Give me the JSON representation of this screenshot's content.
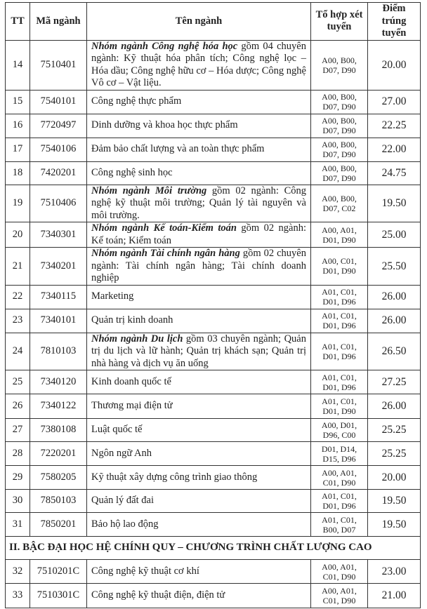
{
  "headers": [
    "TT",
    "Mã ngành",
    "Tên ngành",
    "Tổ hợp xét tuyển",
    "Điểm trúng tuyển"
  ],
  "rows_a": [
    {
      "tt": "14",
      "code": "7510401",
      "bold": "Nhóm ngành Công nghệ hóa học",
      "name": " gồm 04 chuyên ngành: Kỹ thuật hóa phân tích; Công nghệ lọc – Hóa dầu; Công nghệ hữu cơ – Hóa dược; Công nghệ Vô cơ – Vật liệu.",
      "combo": "A00, B00, D07, D90",
      "score": "20.00",
      "h": 71
    },
    {
      "tt": "15",
      "code": "7540101",
      "bold": "",
      "name": "Công nghệ thực phẩm",
      "combo": "A00, B00, D07, D90",
      "score": "27.00",
      "h": 34
    },
    {
      "tt": "16",
      "code": "7720497",
      "bold": "",
      "name": "Dinh dưỡng và khoa học thực phẩm",
      "combo": "A00, B00, D07, D90",
      "score": "22.25",
      "h": 34
    },
    {
      "tt": "17",
      "code": "7540106",
      "bold": "",
      "name": "Đảm bảo chất lượng và an toàn thực phẩm",
      "combo": "A00, B00, D07, D90",
      "score": "22.00",
      "h": 34
    },
    {
      "tt": "18",
      "code": "7420201",
      "bold": "",
      "name": "Công nghệ sinh học",
      "combo": "A00, B00, D07, D90",
      "score": "24.75",
      "h": 33
    },
    {
      "tt": "19",
      "code": "7510406",
      "bold": "Nhóm ngành Môi trường",
      "name": " gồm 02 ngành: Công nghệ kỹ thuật môi trường; Quản lý tài nguyên và môi trường.",
      "combo": "A00, B00, D07, C02",
      "score": "19.50",
      "h": 53
    },
    {
      "tt": "20",
      "code": "7340301",
      "bold": "Nhóm ngành Kế toán-Kiểm toán",
      "name": " gồm 02 ngành: Kế toán; Kiểm toán",
      "combo": "A00, A01, D01, D90",
      "score": "25.00",
      "h": 35
    },
    {
      "tt": "21",
      "code": "7340201",
      "bold": "Nhóm ngành Tài chính ngân hàng",
      "name": " gồm 02 chuyên ngành: Tài chính ngân hàng; Tài chính doanh nghiệp",
      "combo": "A00, C01, D01, D90",
      "score": "25.50",
      "h": 53
    },
    {
      "tt": "22",
      "code": "7340115",
      "bold": "",
      "name": "Marketing",
      "combo": "A01, C01, D01, D96",
      "score": "26.00",
      "h": 34
    },
    {
      "tt": "23",
      "code": "7340101",
      "bold": "",
      "name": "Quản trị kinh doanh",
      "combo": "A01, C01, D01, D96",
      "score": "26.00",
      "h": 34
    },
    {
      "tt": "24",
      "code": "7810103",
      "bold": "Nhóm ngành Du lịch",
      "name": " gồm 03 chuyên ngành; Quản trị du lịch và lữ hành; Quản trị khách sạn; Quản trị nhà hàng và dịch vụ ăn uống",
      "combo": "A01, C01, D01, D96",
      "score": "26.50",
      "h": 52
    },
    {
      "tt": "25",
      "code": "7340120",
      "bold": "",
      "name": "Kinh doanh quốc tế",
      "combo": "A01, C01, D01, D96",
      "score": "27.25",
      "h": 34
    },
    {
      "tt": "26",
      "code": "7340122",
      "bold": "",
      "name": "Thương mại điện tử",
      "combo": "A01, C01, D01, D90",
      "score": "26.00",
      "h": 35
    },
    {
      "tt": "27",
      "code": "7380108",
      "bold": "",
      "name": "Luật quốc tế",
      "combo": "A00, D01, D96, C00",
      "score": "25.25",
      "h": 33
    },
    {
      "tt": "28",
      "code": "7220201",
      "bold": "",
      "name": "Ngôn ngữ Anh",
      "combo": "D01, D14, D15, D96",
      "score": "25.25",
      "h": 34
    },
    {
      "tt": "29",
      "code": "7580205",
      "bold": "",
      "name": "Kỹ thuật xây dựng công trình giao thông",
      "combo": "A00, A01, C01, D90",
      "score": "20.00",
      "h": 34
    },
    {
      "tt": "30",
      "code": "7850103",
      "bold": "",
      "name": "Quản lý đất đai",
      "combo": "A01, C01, D01, D96",
      "score": "19.50",
      "h": 33
    },
    {
      "tt": "31",
      "code": "7850201",
      "bold": "",
      "name": "Bảo hộ lao động",
      "combo": "A01, C01, B00, D07",
      "score": "19.50",
      "h": 34
    }
  ],
  "section": "II. BẬC ĐẠI HỌC HỆ CHÍNH QUY – CHƯƠNG TRÌNH CHẤT LƯỢNG CAO",
  "rows_b": [
    {
      "tt": "32",
      "code": "7510201C",
      "bold": "",
      "name": "Công nghệ kỹ thuật cơ khí",
      "combo": "A00, A01, C01, D90",
      "score": "23.00",
      "h": 34
    },
    {
      "tt": "33",
      "code": "7510301C",
      "bold": "",
      "name": "Công nghệ kỹ thuật điện, điện tử",
      "combo": "A00, A01, C01, D90",
      "score": "21.00",
      "h": 35
    }
  ]
}
